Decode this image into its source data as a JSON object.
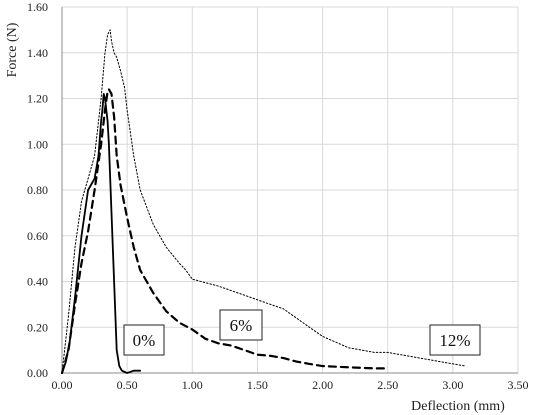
{
  "chart_data": {
    "type": "line",
    "title": "",
    "xlabel": "Deflection (mm)",
    "ylabel": "Force (N)",
    "xlim": [
      0,
      3.5
    ],
    "ylim": [
      0,
      1.6
    ],
    "xticks": [
      "0.00",
      "0.50",
      "1.00",
      "1.50",
      "2.00",
      "2.50",
      "3.00",
      "3.50"
    ],
    "yticks": [
      "0.00",
      "0.20",
      "0.40",
      "0.60",
      "0.80",
      "1.00",
      "1.20",
      "1.40",
      "1.60"
    ],
    "grid": true,
    "legend": "none",
    "annotations": [
      "0%",
      "6%",
      "12%"
    ],
    "series": [
      {
        "label": "0%",
        "style": "solid",
        "color": "#000000",
        "x": [
          0.0,
          0.03,
          0.06,
          0.1,
          0.15,
          0.2,
          0.25,
          0.28,
          0.3,
          0.31,
          0.32,
          0.33,
          0.34,
          0.35,
          0.36,
          0.37,
          0.38,
          0.39,
          0.4,
          0.41,
          0.42,
          0.44,
          0.46,
          0.5,
          0.55,
          0.6
        ],
        "y": [
          0.0,
          0.05,
          0.14,
          0.33,
          0.6,
          0.8,
          0.85,
          0.95,
          1.1,
          1.15,
          1.22,
          1.2,
          1.15,
          1.1,
          1.0,
          0.85,
          0.7,
          0.55,
          0.4,
          0.25,
          0.1,
          0.03,
          0.01,
          0.0,
          0.01,
          0.01
        ]
      },
      {
        "label": "6%",
        "style": "dashed",
        "color": "#000000",
        "x": [
          0.0,
          0.05,
          0.1,
          0.15,
          0.2,
          0.25,
          0.3,
          0.33,
          0.35,
          0.36,
          0.38,
          0.4,
          0.42,
          0.45,
          0.5,
          0.55,
          0.6,
          0.7,
          0.8,
          0.9,
          1.0,
          1.1,
          1.2,
          1.3,
          1.4,
          1.45,
          1.5,
          1.6,
          1.7,
          1.8,
          1.9,
          2.0,
          2.2,
          2.4,
          2.5
        ],
        "y": [
          0.0,
          0.1,
          0.3,
          0.48,
          0.62,
          0.8,
          1.0,
          1.15,
          1.23,
          1.24,
          1.22,
          1.12,
          0.95,
          0.82,
          0.68,
          0.55,
          0.45,
          0.35,
          0.27,
          0.22,
          0.19,
          0.15,
          0.13,
          0.12,
          0.1,
          0.09,
          0.08,
          0.075,
          0.065,
          0.05,
          0.04,
          0.03,
          0.025,
          0.02,
          0.02
        ]
      },
      {
        "label": "12%",
        "style": "dotted",
        "color": "#000000",
        "x": [
          0.0,
          0.05,
          0.1,
          0.15,
          0.2,
          0.25,
          0.3,
          0.33,
          0.35,
          0.37,
          0.38,
          0.4,
          0.42,
          0.45,
          0.48,
          0.5,
          0.55,
          0.6,
          0.7,
          0.8,
          0.9,
          0.95,
          1.0,
          1.2,
          1.4,
          1.6,
          1.7,
          1.8,
          1.9,
          2.0,
          2.2,
          2.4,
          2.5,
          2.6,
          2.8,
          3.0,
          3.1
        ],
        "y": [
          0.0,
          0.25,
          0.55,
          0.75,
          0.85,
          0.95,
          1.2,
          1.4,
          1.48,
          1.5,
          1.45,
          1.4,
          1.38,
          1.32,
          1.25,
          1.15,
          0.95,
          0.8,
          0.65,
          0.55,
          0.48,
          0.45,
          0.41,
          0.38,
          0.34,
          0.3,
          0.28,
          0.24,
          0.2,
          0.16,
          0.11,
          0.09,
          0.09,
          0.08,
          0.06,
          0.04,
          0.03
        ]
      }
    ]
  }
}
